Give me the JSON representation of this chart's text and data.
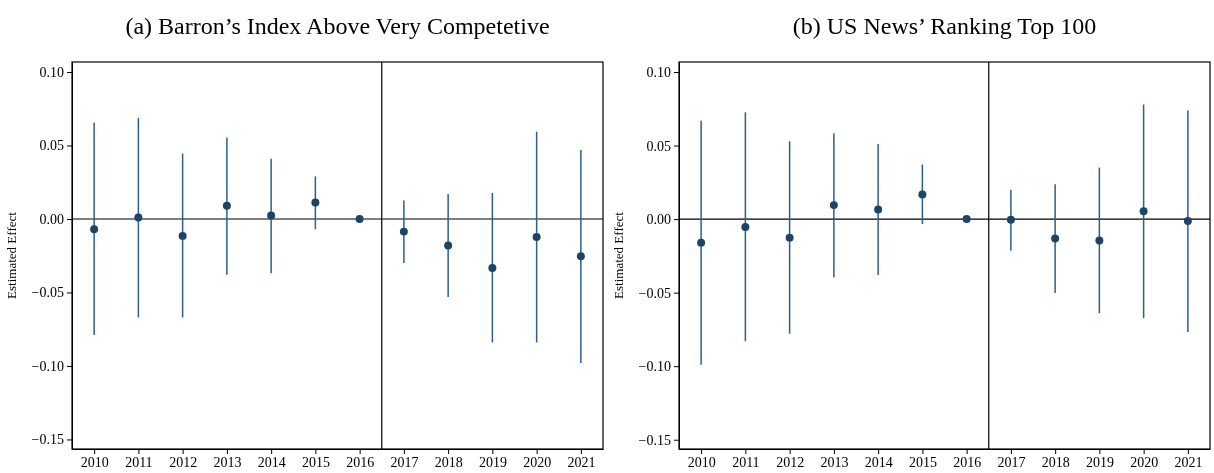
{
  "chart_data": [
    {
      "type": "scatter",
      "title": "(a) Barron’s Index Above Very Competetive",
      "ylabel": "Estimated Effect",
      "x": [
        2010,
        2011,
        2012,
        2013,
        2014,
        2015,
        2016,
        2017,
        2018,
        2019,
        2020,
        2021
      ],
      "xlim": [
        2009.5,
        2021.5
      ],
      "xticks": [
        2010,
        2011,
        2012,
        2013,
        2014,
        2015,
        2016,
        2017,
        2018,
        2019,
        2020,
        2021
      ],
      "ylim": [
        -0.1565,
        0.1068
      ],
      "yticks": [
        {
          "value": 0.1,
          "label": "0.10"
        },
        {
          "value": 0.05,
          "label": "0.05"
        },
        {
          "value": 0,
          "label": "0.00"
        },
        {
          "value": -0.05,
          "label": "−0.05"
        },
        {
          "value": -0.1,
          "label": "−0.10"
        },
        {
          "value": -0.15,
          "label": "−0.15"
        }
      ],
      "marker": "circle",
      "grid": false,
      "series": [
        {
          "color": "#1b4468",
          "values": [
            -0.007,
            0.001,
            -0.0115,
            0.009,
            0.0023,
            0.0112,
            0,
            -0.0086,
            -0.018,
            -0.0333,
            -0.0122,
            -0.0253
          ],
          "errors": [
            [
              -0.079,
              0.0656
            ],
            [
              -0.067,
              0.0688
            ],
            [
              -0.067,
              0.0445
            ],
            [
              -0.038,
              0.0555
            ],
            [
              -0.037,
              0.041
            ],
            [
              -0.007,
              0.029
            ],
            null,
            [
              -0.03,
              0.0125
            ],
            [
              -0.053,
              0.017
            ],
            [
              -0.084,
              0.0177
            ],
            [
              -0.084,
              0.0594
            ],
            [
              -0.098,
              0.047
            ]
          ]
        }
      ],
      "ref_lines": [
        {
          "axis": "x",
          "value": 2016.5,
          "color": "#000000"
        },
        {
          "axis": "y",
          "value": 0,
          "color": "#000000"
        }
      ]
    },
    {
      "type": "scatter",
      "title": "(b) US News’ Ranking Top 100",
      "ylabel": "Estimated Effect",
      "x": [
        2010,
        2011,
        2012,
        2013,
        2014,
        2015,
        2016,
        2017,
        2018,
        2019,
        2020,
        2021
      ],
      "xlim": [
        2009.5,
        2021.5
      ],
      "xticks": [
        2010,
        2011,
        2012,
        2013,
        2014,
        2015,
        2016,
        2017,
        2018,
        2019,
        2020,
        2021
      ],
      "ylim": [
        -0.1563,
        0.1068
      ],
      "yticks": [
        {
          "value": 0.1,
          "label": "0.10"
        },
        {
          "value": 0.05,
          "label": "0.05"
        },
        {
          "value": 0,
          "label": "0.00"
        },
        {
          "value": -0.05,
          "label": "−0.05"
        },
        {
          "value": -0.1,
          "label": "−0.10"
        },
        {
          "value": -0.15,
          "label": "−0.15"
        }
      ],
      "marker": "circle",
      "grid": false,
      "series": [
        {
          "color": "#1b4468",
          "values": [
            -0.016,
            -0.0053,
            -0.0126,
            0.0095,
            0.0066,
            0.0168,
            0,
            -0.0005,
            -0.0132,
            -0.0145,
            0.0053,
            -0.0013
          ],
          "errors": [
            [
              -0.099,
              0.0668
            ],
            [
              -0.083,
              0.0726
            ],
            [
              -0.078,
              0.0529
            ],
            [
              -0.0397,
              0.0584
            ],
            [
              -0.038,
              0.0511
            ],
            [
              -0.0034,
              0.0371
            ],
            null,
            [
              -0.0216,
              0.02
            ],
            [
              -0.0503,
              0.0237
            ],
            [
              -0.0639,
              0.035
            ],
            [
              -0.0674,
              0.0779
            ],
            [
              -0.0768,
              0.0739
            ]
          ]
        }
      ],
      "ref_lines": [
        {
          "axis": "x",
          "value": 2016.5,
          "color": "#000000"
        },
        {
          "axis": "y",
          "value": 0,
          "color": "#000000"
        }
      ]
    }
  ]
}
